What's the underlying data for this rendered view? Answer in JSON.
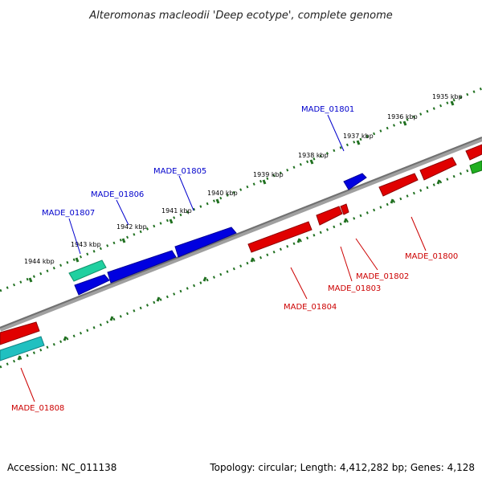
{
  "title": "Alteromonas macleodii 'Deep ecotype', complete genome",
  "footer": {
    "accession": "Accession: NC_011138",
    "summary": "Topology: circular; Length: 4,412,282 bp; Genes: 4,128"
  },
  "colors": {
    "forward_gene": "#0000e0",
    "reverse_gene": "#e00000",
    "rna_gene": "#20d0a0",
    "other_gene": "#20c0c0",
    "green_gene": "#20b020",
    "backbone": "#808080",
    "tick": "#207020",
    "label_forward": "#0000cc",
    "label_reverse": "#cc0000"
  },
  "ticks": [
    {
      "label": "1935 kbp"
    },
    {
      "label": "1936 kbp"
    },
    {
      "label": "1937 kbp"
    },
    {
      "label": "1938 kbp"
    },
    {
      "label": "1939 kbp"
    },
    {
      "label": "1940 kbp"
    },
    {
      "label": "1941 kbp"
    },
    {
      "label": "1942 kbp"
    },
    {
      "label": "1943 kbp"
    },
    {
      "label": "1944 kbp"
    }
  ],
  "gene_labels": {
    "forward": [
      "MADE_01801",
      "MADE_01805",
      "MADE_01806",
      "MADE_01807"
    ],
    "reverse": [
      "MADE_01800",
      "MADE_01802",
      "MADE_01803",
      "MADE_01804",
      "MADE_01808"
    ]
  }
}
